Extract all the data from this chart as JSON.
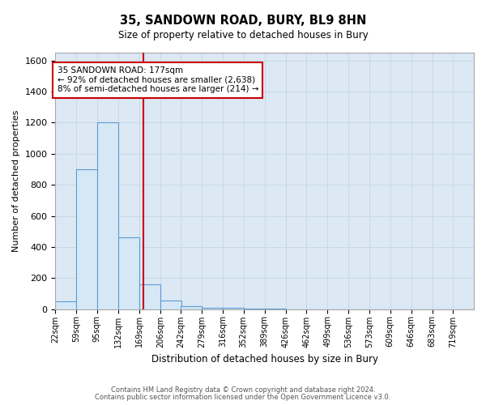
{
  "title": "35, SANDOWN ROAD, BURY, BL9 8HN",
  "subtitle": "Size of property relative to detached houses in Bury",
  "xlabel": "Distribution of detached houses by size in Bury",
  "ylabel": "Number of detached properties",
  "footnote1": "Contains HM Land Registry data © Crown copyright and database right 2024.",
  "footnote2": "Contains public sector information licensed under the Open Government Licence v3.0.",
  "annotation_line1": "35 SANDOWN ROAD: 177sqm",
  "annotation_line2": "← 92% of detached houses are smaller (2,638)",
  "annotation_line3": "8% of semi-detached houses are larger (214) →",
  "property_size": 177,
  "bin_edges": [
    22,
    59,
    95,
    132,
    169,
    206,
    242,
    279,
    316,
    352,
    389,
    426,
    462,
    499,
    536,
    573,
    609,
    646,
    683,
    719,
    756
  ],
  "bar_heights": [
    50,
    900,
    1200,
    460,
    160,
    55,
    20,
    10,
    8,
    5,
    5,
    0,
    0,
    0,
    0,
    0,
    0,
    0,
    0,
    0
  ],
  "bar_facecolor": "#d6e8f5",
  "bar_edgecolor": "#5b9bd5",
  "redline_color": "#cc0000",
  "annotation_box_edgecolor": "#cc0000",
  "annotation_box_facecolor": "#ffffff",
  "grid_color": "#c8d8e8",
  "background_color": "#dce8f4",
  "ylim": [
    0,
    1650
  ],
  "yticks": [
    0,
    200,
    400,
    600,
    800,
    1000,
    1200,
    1400,
    1600
  ]
}
